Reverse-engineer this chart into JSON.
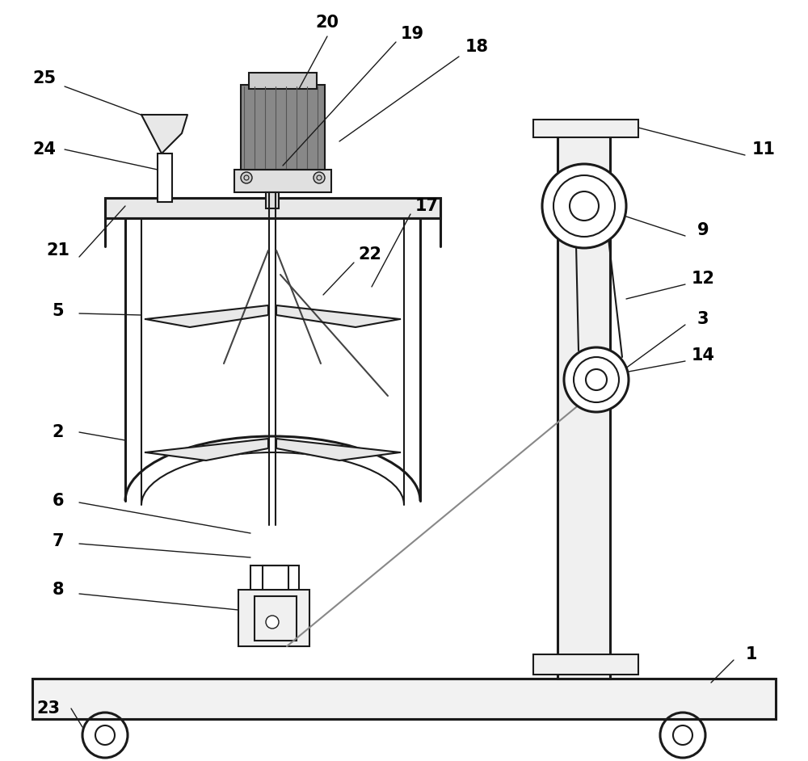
{
  "bg_color": "#ffffff",
  "line_color": "#1a1a1a",
  "lw": 1.5,
  "lwt": 2.2,
  "fs": 15,
  "fw": "bold"
}
